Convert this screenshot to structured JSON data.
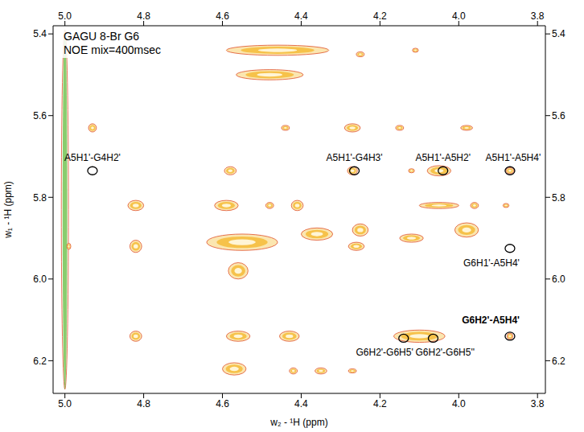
{
  "chart_data": {
    "type": "scatter",
    "title": "GAGU 8-Br G6",
    "subtitle": "NOE mix=400msec",
    "x_label": "w₂ - ¹H (ppm)",
    "y_label": "w₁ - ¹H (ppm)",
    "xlim": [
      5.03,
      3.78
    ],
    "ylim": [
      6.28,
      5.38
    ],
    "xticks": [
      {
        "value": 5,
        "label": "5.0"
      },
      4.8,
      4.6,
      4.4,
      4.2,
      {
        "value": 4,
        "label": "4.0"
      },
      3.8
    ],
    "yticks": [
      5.4,
      5.6,
      5.8,
      {
        "value": 6,
        "label": "6.0"
      },
      6.2
    ],
    "color": "#f6c24a",
    "ridge": {
      "x": 5.0,
      "y": 5.83,
      "w": 0.012,
      "h": 0.88,
      "color": "#6cc04a"
    },
    "peaks": [
      {
        "x": 4.46,
        "y": 5.44,
        "w": 0.26,
        "h": 0.025
      },
      {
        "x": 4.25,
        "y": 5.45,
        "w": 0.02,
        "h": 0.012
      },
      {
        "x": 4.11,
        "y": 5.44,
        "w": 0.015,
        "h": 0.01
      },
      {
        "x": 4.48,
        "y": 5.5,
        "w": 0.17,
        "h": 0.025
      },
      {
        "x": 4.93,
        "y": 5.63,
        "w": 0.02,
        "h": 0.02
      },
      {
        "x": 4.44,
        "y": 5.63,
        "w": 0.02,
        "h": 0.012
      },
      {
        "x": 4.27,
        "y": 5.63,
        "w": 0.04,
        "h": 0.02
      },
      {
        "x": 4.15,
        "y": 5.63,
        "w": 0.02,
        "h": 0.012
      },
      {
        "x": 3.98,
        "y": 5.63,
        "w": 0.03,
        "h": 0.012
      },
      {
        "x": 4.58,
        "y": 5.735,
        "w": 0.03,
        "h": 0.02
      },
      {
        "x": 4.27,
        "y": 5.735,
        "w": 0.025,
        "h": 0.02
      },
      {
        "x": 4.05,
        "y": 5.735,
        "w": 0.06,
        "h": 0.025
      },
      {
        "x": 4.12,
        "y": 5.735,
        "w": 0.015,
        "h": 0.01
      },
      {
        "x": 3.87,
        "y": 5.735,
        "w": 0.02,
        "h": 0.015
      },
      {
        "x": 4.82,
        "y": 5.82,
        "w": 0.04,
        "h": 0.025
      },
      {
        "x": 4.59,
        "y": 5.82,
        "w": 0.06,
        "h": 0.025
      },
      {
        "x": 4.48,
        "y": 5.82,
        "w": 0.02,
        "h": 0.015
      },
      {
        "x": 4.41,
        "y": 5.82,
        "w": 0.03,
        "h": 0.025
      },
      {
        "x": 4.05,
        "y": 5.82,
        "w": 0.1,
        "h": 0.015
      },
      {
        "x": 3.96,
        "y": 5.82,
        "w": 0.02,
        "h": 0.015
      },
      {
        "x": 3.88,
        "y": 5.82,
        "w": 0.015,
        "h": 0.01
      },
      {
        "x": 4.55,
        "y": 5.91,
        "w": 0.18,
        "h": 0.04
      },
      {
        "x": 4.36,
        "y": 5.89,
        "w": 0.08,
        "h": 0.03
      },
      {
        "x": 4.25,
        "y": 5.88,
        "w": 0.04,
        "h": 0.03
      },
      {
        "x": 4.26,
        "y": 5.92,
        "w": 0.04,
        "h": 0.02
      },
      {
        "x": 4.12,
        "y": 5.9,
        "w": 0.06,
        "h": 0.02
      },
      {
        "x": 3.98,
        "y": 5.88,
        "w": 0.06,
        "h": 0.035
      },
      {
        "x": 4.82,
        "y": 5.92,
        "w": 0.03,
        "h": 0.03
      },
      {
        "x": 4.99,
        "y": 5.92,
        "w": 0.01,
        "h": 0.015
      },
      {
        "x": 4.56,
        "y": 5.98,
        "w": 0.05,
        "h": 0.04
      },
      {
        "x": 4.82,
        "y": 6.14,
        "w": 0.03,
        "h": 0.025
      },
      {
        "x": 4.56,
        "y": 6.14,
        "w": 0.06,
        "h": 0.025
      },
      {
        "x": 4.43,
        "y": 6.14,
        "w": 0.05,
        "h": 0.025
      },
      {
        "x": 4.1,
        "y": 6.14,
        "w": 0.13,
        "h": 0.03
      },
      {
        "x": 3.87,
        "y": 6.14,
        "w": 0.015,
        "h": 0.015
      },
      {
        "x": 4.57,
        "y": 6.22,
        "w": 0.06,
        "h": 0.03
      },
      {
        "x": 4.42,
        "y": 6.225,
        "w": 0.02,
        "h": 0.015
      },
      {
        "x": 4.35,
        "y": 6.225,
        "w": 0.03,
        "h": 0.015
      },
      {
        "x": 4.27,
        "y": 6.225,
        "w": 0.02,
        "h": 0.01
      }
    ],
    "annotations": [
      {
        "label": "A5H1'-G4H2'",
        "x": 4.93,
        "y": 5.735
      },
      {
        "label": "A5H1'-G4H3'",
        "x": 4.265,
        "y": 5.735
      },
      {
        "label": "A5H1'-A5H2'",
        "x": 4.04,
        "y": 5.735
      },
      {
        "label": "A5H1'-A5H4'",
        "x": 3.87,
        "y": 5.735
      },
      {
        "label": "G6H1'-A5H4'",
        "x": 3.87,
        "y": 5.925
      },
      {
        "label": "G6H2'-A5H4'",
        "x": 3.87,
        "y": 6.14
      },
      {
        "label": "G6H2'-G6H5'",
        "x": 4.14,
        "y": 6.145
      },
      {
        "label": "G6H2'-G6H5''",
        "x": 4.065,
        "y": 6.145
      }
    ]
  }
}
